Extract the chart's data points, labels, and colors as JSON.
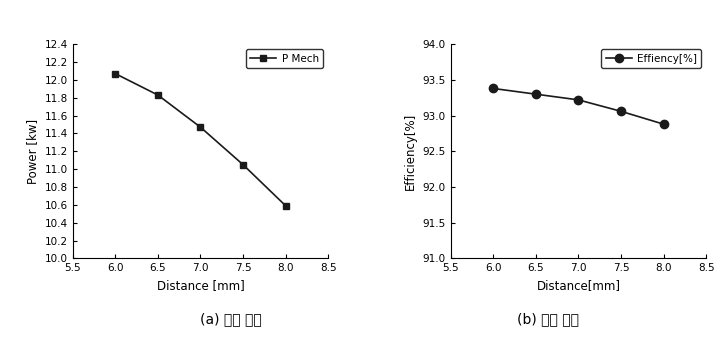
{
  "left": {
    "x": [
      6.0,
      6.5,
      7.0,
      7.5,
      8.0
    ],
    "y": [
      12.07,
      11.83,
      11.47,
      11.05,
      10.59
    ],
    "xlabel": "Distance [mm]",
    "ylabel": "Power [kw]",
    "xlim": [
      5.5,
      8.5
    ],
    "ylim": [
      10.0,
      12.4
    ],
    "yticks": [
      10.0,
      10.2,
      10.4,
      10.6,
      10.8,
      11.0,
      11.2,
      11.4,
      11.6,
      11.8,
      12.0,
      12.2,
      12.4
    ],
    "xticks": [
      5.5,
      6.0,
      6.5,
      7.0,
      7.5,
      8.0,
      8.5
    ],
    "legend_label": "P Mech",
    "marker": "s",
    "caption": "(a) 출력 결과",
    "line_color": "#1a1a1a",
    "marker_color": "#1a1a1a"
  },
  "right": {
    "x": [
      6.0,
      6.5,
      7.0,
      7.5,
      8.0
    ],
    "y": [
      93.38,
      93.3,
      93.22,
      93.06,
      92.88
    ],
    "xlabel": "Distance[mm]",
    "ylabel": "Efficiency[%]",
    "xlim": [
      5.5,
      8.5
    ],
    "ylim": [
      91.0,
      94.0
    ],
    "yticks": [
      91.0,
      91.5,
      92.0,
      92.5,
      93.0,
      93.5,
      94.0
    ],
    "xticks": [
      5.5,
      6.0,
      6.5,
      7.0,
      7.5,
      8.0,
      8.5
    ],
    "legend_label": "Effiency[%]",
    "marker": "o",
    "caption": "(b) 효율 결과",
    "line_color": "#1a1a1a",
    "marker_color": "#1a1a1a"
  }
}
